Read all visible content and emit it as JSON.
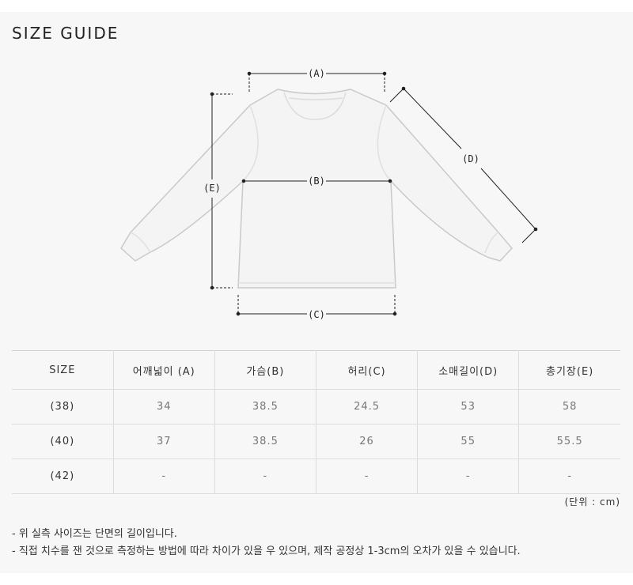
{
  "title": "SIZE GUIDE",
  "diagram": {
    "a": "(A)",
    "b": "(B)",
    "c": "(C)",
    "d": "(D)",
    "e": "(E)"
  },
  "table": {
    "headers": [
      "SIZE",
      "어깨넓이 (A)",
      "가슴(B)",
      "허리(C)",
      "소매길이(D)",
      "총기장(E)"
    ],
    "rows": [
      [
        "(38)",
        "34",
        "38.5",
        "24.5",
        "53",
        "58"
      ],
      [
        "(40)",
        "37",
        "38.5",
        "26",
        "55",
        "55.5"
      ],
      [
        "(42)",
        "-",
        "-",
        "-",
        "-",
        "-"
      ]
    ]
  },
  "unit": "(단위 : cm)",
  "notes": [
    "- 위 실측 사이즈는 단면의 길이입니다.",
    "- 직접 치수를 잰 것으로 측정하는 방법에 따라 차이가 있을 우 있으며, 제작 공정상 1-3cm의 오차가 있을 수 있습니다."
  ]
}
